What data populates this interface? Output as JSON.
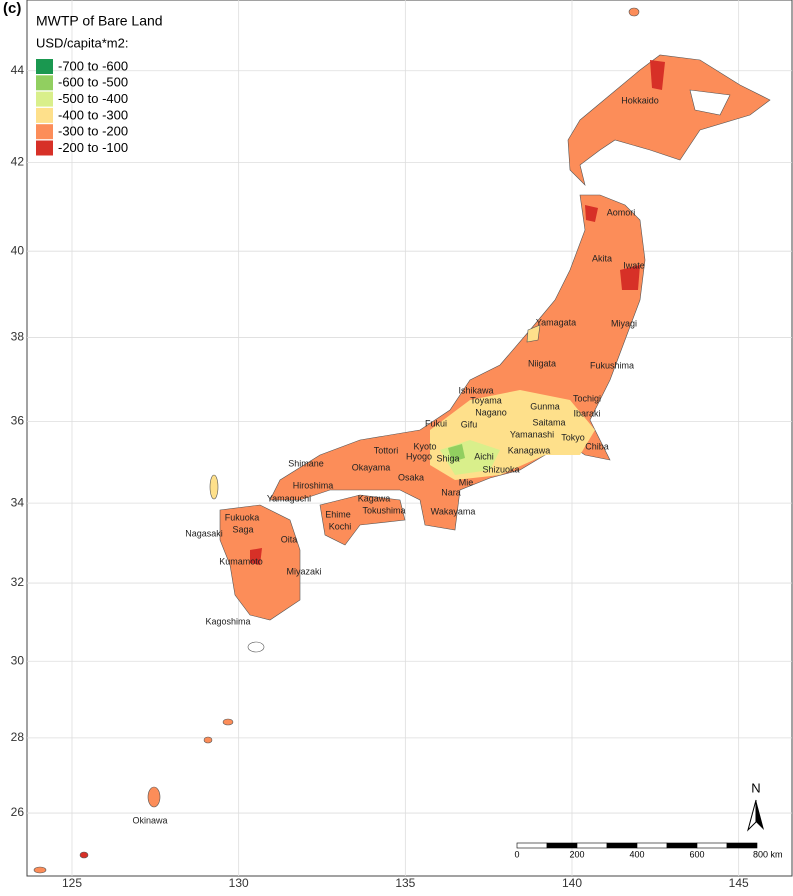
{
  "panel_label": "(c)",
  "legend": {
    "title": "MWTP of Bare Land",
    "subtitle": "USD/capita*m2:",
    "items": [
      {
        "label": "-700 to -600",
        "color": "#1a9850"
      },
      {
        "label": "-600 to -500",
        "color": "#91cf60"
      },
      {
        "label": "-500 to -400",
        "color": "#d9ef8b"
      },
      {
        "label": "-400 to -300",
        "color": "#fee08b"
      },
      {
        "label": "-300 to -200",
        "color": "#fc8d59"
      },
      {
        "label": "-200 to -100",
        "color": "#d73027"
      }
    ]
  },
  "map": {
    "xlim": [
      123.65,
      146.6
    ],
    "ylim": [
      24.3,
      45.5
    ],
    "xticks": [
      125,
      130,
      135,
      140,
      145
    ],
    "yticks": [
      26,
      28,
      30,
      32,
      34,
      36,
      38,
      40,
      42,
      44
    ],
    "grid": true,
    "labels": [
      "Hokkaido",
      "Aomori",
      "Akita",
      "Iwate",
      "Yamagata",
      "Miyagi",
      "Niigata",
      "Fukushima",
      "Ishikawa",
      "Toyama",
      "Nagano",
      "Tochigi",
      "Gunma",
      "Ibaraki",
      "Saitama",
      "Fukui",
      "Gifu",
      "Yamanashi",
      "Tokyo",
      "Chiba",
      "Kyoto",
      "Tottori",
      "Hyogo",
      "Shiga",
      "Aichi",
      "Kanagawa",
      "Shimane",
      "Okayama",
      "Shizuoka",
      "Osaka",
      "Hiroshima",
      "Yamaguchi",
      "Kagawa",
      "Nara",
      "Mie",
      "Ehime",
      "Tokushima",
      "Wakayama",
      "Kochi",
      "Fukuoka",
      "Saga",
      "Nagasaki",
      "Oita",
      "Kumamoto",
      "Miyazaki",
      "Kagoshima",
      "Okinawa"
    ]
  },
  "scale_bar": {
    "labels": [
      "0",
      "200",
      "400",
      "600",
      "800 km"
    ]
  },
  "north_arrow": "N"
}
